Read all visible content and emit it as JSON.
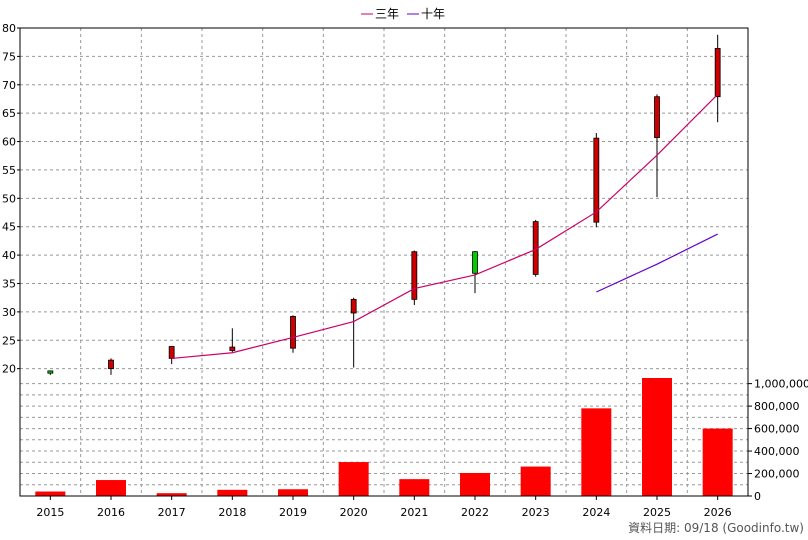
{
  "chart_data": {
    "type": "candlestick",
    "categories": [
      "2015",
      "2016",
      "2017",
      "2018",
      "2019",
      "2020",
      "2021",
      "2022",
      "2023",
      "2024",
      "2025",
      "2026"
    ],
    "legend": [
      {
        "name": "三年",
        "color": "#cc0066"
      },
      {
        "name": "十年",
        "color": "#6600cc"
      }
    ],
    "price_axis": {
      "ylim": [
        18,
        80
      ],
      "ticks": [
        20,
        25,
        30,
        35,
        40,
        45,
        50,
        55,
        60,
        65,
        70,
        75,
        80
      ]
    },
    "volume_axis": {
      "ylim": [
        0,
        1050000
      ],
      "ticks": [
        "0",
        "200,000",
        "400,000",
        "600,000",
        "800,000",
        "1,000,000"
      ],
      "tick_values": [
        0,
        200000,
        400000,
        600000,
        800000,
        1000000
      ]
    },
    "candles": [
      {
        "year": "2015",
        "open": 19.6,
        "close": 19.2,
        "high": 19.7,
        "low": 18.9
      },
      {
        "year": "2016",
        "open": 20.0,
        "close": 21.5,
        "high": 21.8,
        "low": 18.9
      },
      {
        "year": "2017",
        "open": 21.8,
        "close": 23.9,
        "high": 24.0,
        "low": 20.8
      },
      {
        "year": "2018",
        "open": 23.2,
        "close": 23.8,
        "high": 27.1,
        "low": 22.9
      },
      {
        "year": "2019",
        "open": 23.6,
        "close": 29.2,
        "high": 29.4,
        "low": 22.8
      },
      {
        "year": "2020",
        "open": 29.8,
        "close": 32.2,
        "high": 32.5,
        "low": 20.2
      },
      {
        "year": "2021",
        "open": 32.2,
        "close": 40.6,
        "high": 40.8,
        "low": 31.2
      },
      {
        "year": "2022",
        "open": 40.6,
        "close": 36.8,
        "high": 40.7,
        "low": 33.3
      },
      {
        "year": "2023",
        "open": 36.6,
        "close": 45.9,
        "high": 46.2,
        "low": 36.2
      },
      {
        "year": "2024",
        "open": 45.8,
        "close": 60.6,
        "high": 61.5,
        "low": 44.9
      },
      {
        "year": "2025",
        "open": 60.7,
        "close": 67.9,
        "high": 68.3,
        "low": 50.2
      },
      {
        "year": "2026",
        "open": 67.9,
        "close": 76.4,
        "high": 78.8,
        "low": 63.4
      }
    ],
    "ma3": [
      {
        "year": "2017",
        "value": 21.8
      },
      {
        "year": "2018",
        "value": 22.8
      },
      {
        "year": "2019",
        "value": 25.5
      },
      {
        "year": "2020",
        "value": 28.3
      },
      {
        "year": "2021",
        "value": 34.1
      },
      {
        "year": "2022",
        "value": 36.5
      },
      {
        "year": "2023",
        "value": 41.0
      },
      {
        "year": "2024",
        "value": 47.6
      },
      {
        "year": "2025",
        "value": 57.6
      },
      {
        "year": "2026",
        "value": 68.3
      }
    ],
    "ma10": [
      {
        "year": "2024",
        "value": 33.5
      },
      {
        "year": "2025",
        "value": 38.4
      },
      {
        "year": "2026",
        "value": 43.7
      }
    ],
    "volume": [
      {
        "year": "2015",
        "value": 40000
      },
      {
        "year": "2016",
        "value": 142000
      },
      {
        "year": "2017",
        "value": 25000
      },
      {
        "year": "2018",
        "value": 55000
      },
      {
        "year": "2019",
        "value": 60000
      },
      {
        "year": "2020",
        "value": 302000
      },
      {
        "year": "2021",
        "value": 150000
      },
      {
        "year": "2022",
        "value": 205000
      },
      {
        "year": "2023",
        "value": 262000
      },
      {
        "year": "2024",
        "value": 780000
      },
      {
        "year": "2025",
        "value": 1050000
      },
      {
        "year": "2026",
        "value": 600000
      }
    ],
    "colors": {
      "up": "#cc0000",
      "down": "#00cc00",
      "volume": "#ff0000",
      "grid": "#999999",
      "ma3": "#cc0066",
      "ma10": "#6600cc"
    },
    "grid": true,
    "footer": "資料日期: 09/18 (Goodinfo.tw)"
  }
}
